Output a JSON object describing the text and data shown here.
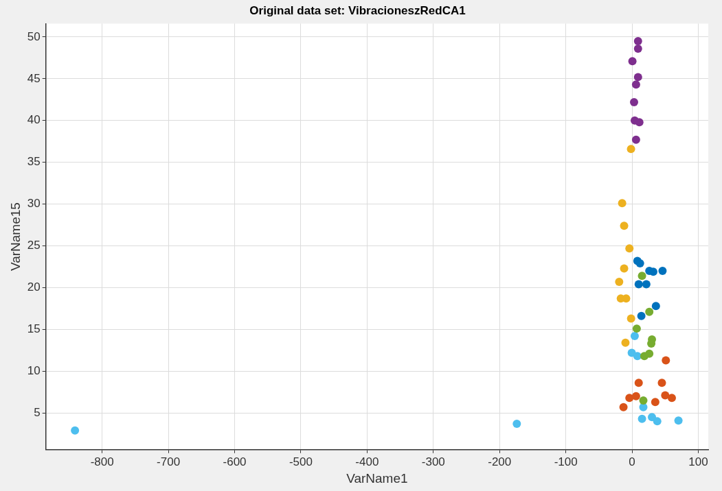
{
  "chart_data": {
    "type": "scatter",
    "title": "Original data set: VibracioneszRedCA1",
    "xlabel": "VarName1",
    "ylabel": "VarName15",
    "xlim": [
      -885,
      115
    ],
    "xticks": [
      -800,
      -700,
      -600,
      -500,
      -400,
      -300,
      -200,
      -100,
      0,
      100
    ],
    "ylim": [
      0.6,
      51.6
    ],
    "yticks": [
      5,
      10,
      15,
      20,
      25,
      30,
      35,
      40,
      45,
      50
    ],
    "grid": true,
    "legend": false,
    "marker": "circle",
    "series": [
      {
        "color": "#0072bd",
        "x": [
          8,
          12,
          26,
          32,
          46,
          10,
          21.5,
          36,
          14
        ],
        "values": [
          23.2,
          22.9,
          22.0,
          21.9,
          22.0,
          20.4,
          20.4,
          17.8,
          16.6
        ]
      },
      {
        "color": "#d95319",
        "x": [
          51,
          10,
          45,
          -4,
          6,
          50,
          60,
          35,
          -13
        ],
        "values": [
          11.3,
          8.6,
          8.6,
          6.8,
          7.0,
          7.1,
          6.8,
          6.3,
          5.7
        ]
      },
      {
        "color": "#edb120",
        "x": [
          -1.6,
          -15,
          -12,
          -4,
          -12,
          -19.5,
          -17,
          -9,
          -1.5,
          -10
        ],
        "values": [
          36.6,
          30.1,
          27.4,
          24.7,
          22.3,
          20.7,
          18.7,
          18.7,
          16.3,
          13.4
        ]
      },
      {
        "color": "#7e2f8e",
        "x": [
          9,
          9,
          0.5,
          9,
          6,
          3,
          4,
          11,
          6
        ],
        "values": [
          49.5,
          48.6,
          47.1,
          45.2,
          44.3,
          42.2,
          40.0,
          39.8,
          37.7
        ]
      },
      {
        "color": "#77ac30",
        "x": [
          15,
          26,
          7,
          30,
          29,
          18.5,
          26,
          17
        ],
        "values": [
          21.4,
          17.1,
          15.1,
          13.8,
          13.3,
          11.8,
          12.1,
          6.5
        ]
      },
      {
        "color": "#4dbeee",
        "x": [
          4,
          -0.5,
          8,
          17,
          15,
          30,
          38,
          70,
          -841,
          -174
        ],
        "values": [
          14.2,
          12.2,
          11.8,
          5.7,
          4.3,
          4.5,
          4.0,
          4.1,
          2.9,
          3.7
        ]
      }
    ]
  }
}
